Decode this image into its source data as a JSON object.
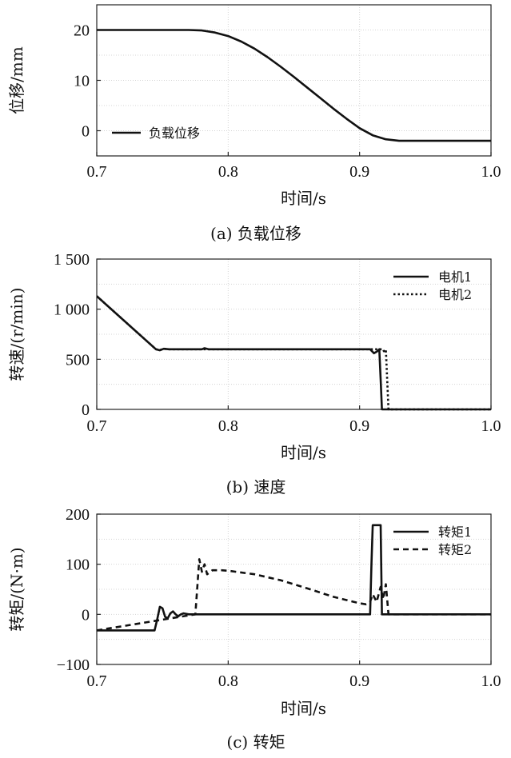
{
  "chart_data": [
    {
      "type": "line",
      "caption": "(a) 负载位移",
      "xlabel": "时间/s",
      "ylabel": "位移/mm",
      "xlim": [
        0.7,
        1.0
      ],
      "ylim": [
        -5,
        25
      ],
      "xticks": [
        0.7,
        0.8,
        0.9,
        1.0
      ],
      "xtick_labels": [
        "0.7",
        "0.8",
        "0.9",
        "1.0"
      ],
      "yticks": [
        0,
        10,
        20
      ],
      "ytick_labels": [
        "0",
        "10",
        "20"
      ],
      "grid": true,
      "legend_position": "bottom-left",
      "series": [
        {
          "name": "负载位移",
          "style": "solid",
          "color": "#111111",
          "x": [
            0.7,
            0.77,
            0.78,
            0.79,
            0.8,
            0.81,
            0.82,
            0.83,
            0.84,
            0.85,
            0.86,
            0.87,
            0.88,
            0.89,
            0.9,
            0.91,
            0.92,
            0.93,
            0.94,
            1.0
          ],
          "y": [
            20,
            20,
            19.9,
            19.5,
            18.8,
            17.7,
            16.3,
            14.6,
            12.7,
            10.7,
            8.6,
            6.5,
            4.4,
            2.4,
            0.5,
            -0.9,
            -1.7,
            -2.0,
            -2.0,
            -2.0
          ]
        }
      ]
    },
    {
      "type": "line",
      "caption": "(b) 速度",
      "xlabel": "时间/s",
      "ylabel": "转速/(r/min)",
      "xlim": [
        0.7,
        1.0
      ],
      "ylim": [
        0,
        1500
      ],
      "xticks": [
        0.7,
        0.8,
        0.9,
        1.0
      ],
      "xtick_labels": [
        "0.7",
        "0.8",
        "0.9",
        "1.0"
      ],
      "yticks": [
        0,
        500,
        1000,
        1500
      ],
      "ytick_labels": [
        "0",
        "500",
        "1 000",
        "1 500"
      ],
      "grid": true,
      "legend_position": "top-right",
      "series": [
        {
          "name": "电机1",
          "style": "solid",
          "color": "#111111",
          "x": [
            0.7,
            0.745,
            0.748,
            0.751,
            0.755,
            0.78,
            0.782,
            0.785,
            0.908,
            0.911,
            0.913,
            0.915,
            0.916,
            0.917,
            1.0
          ],
          "y": [
            1130,
            600,
            590,
            605,
            600,
            600,
            610,
            600,
            600,
            560,
            575,
            600,
            300,
            0,
            0
          ]
        },
        {
          "name": "电机2",
          "style": "dotted",
          "color": "#111111",
          "x": [
            0.7,
            0.745,
            0.748,
            0.751,
            0.755,
            0.918,
            0.919,
            0.92,
            0.922,
            1.0
          ],
          "y": [
            1130,
            600,
            592,
            605,
            600,
            600,
            560,
            600,
            0,
            0
          ]
        }
      ]
    },
    {
      "type": "line",
      "caption": "(c) 转矩",
      "xlabel": "时间/s",
      "ylabel": "转矩/(N·m)",
      "xlim": [
        0.7,
        1.0
      ],
      "ylim": [
        -100,
        200
      ],
      "xticks": [
        0.7,
        0.8,
        0.9,
        1.0
      ],
      "xtick_labels": [
        "0.7",
        "0.8",
        "0.9",
        "1.0"
      ],
      "yticks": [
        -100,
        0,
        100,
        200
      ],
      "ytick_labels": [
        "−100",
        "0",
        "100",
        "200"
      ],
      "grid": true,
      "legend_position": "top-right",
      "series": [
        {
          "name": "转矩1",
          "style": "solid",
          "color": "#111111",
          "x": [
            0.7,
            0.744,
            0.746,
            0.748,
            0.75,
            0.752,
            0.754,
            0.756,
            0.758,
            0.76,
            0.762,
            0.764,
            0.766,
            0.77,
            0.775,
            0.908,
            0.909,
            0.91,
            0.916,
            0.917,
            1.0
          ],
          "y": [
            -32,
            -32,
            -10,
            15,
            12,
            -5,
            -8,
            2,
            6,
            0,
            -4,
            0,
            2,
            0,
            0,
            0,
            100,
            178,
            178,
            0,
            0
          ]
        },
        {
          "name": "转矩2",
          "style": "dashed",
          "color": "#111111",
          "x": [
            0.7,
            0.775,
            0.778,
            0.78,
            0.782,
            0.784,
            0.788,
            0.795,
            0.8,
            0.82,
            0.84,
            0.86,
            0.88,
            0.9,
            0.905,
            0.908,
            0.91,
            0.913,
            0.916,
            0.918,
            0.92,
            0.922,
            1.0
          ],
          "y": [
            -32,
            0,
            110,
            85,
            100,
            80,
            88,
            88,
            87,
            80,
            68,
            52,
            35,
            22,
            20,
            25,
            40,
            25,
            55,
            30,
            60,
            0,
            0
          ]
        }
      ]
    }
  ]
}
